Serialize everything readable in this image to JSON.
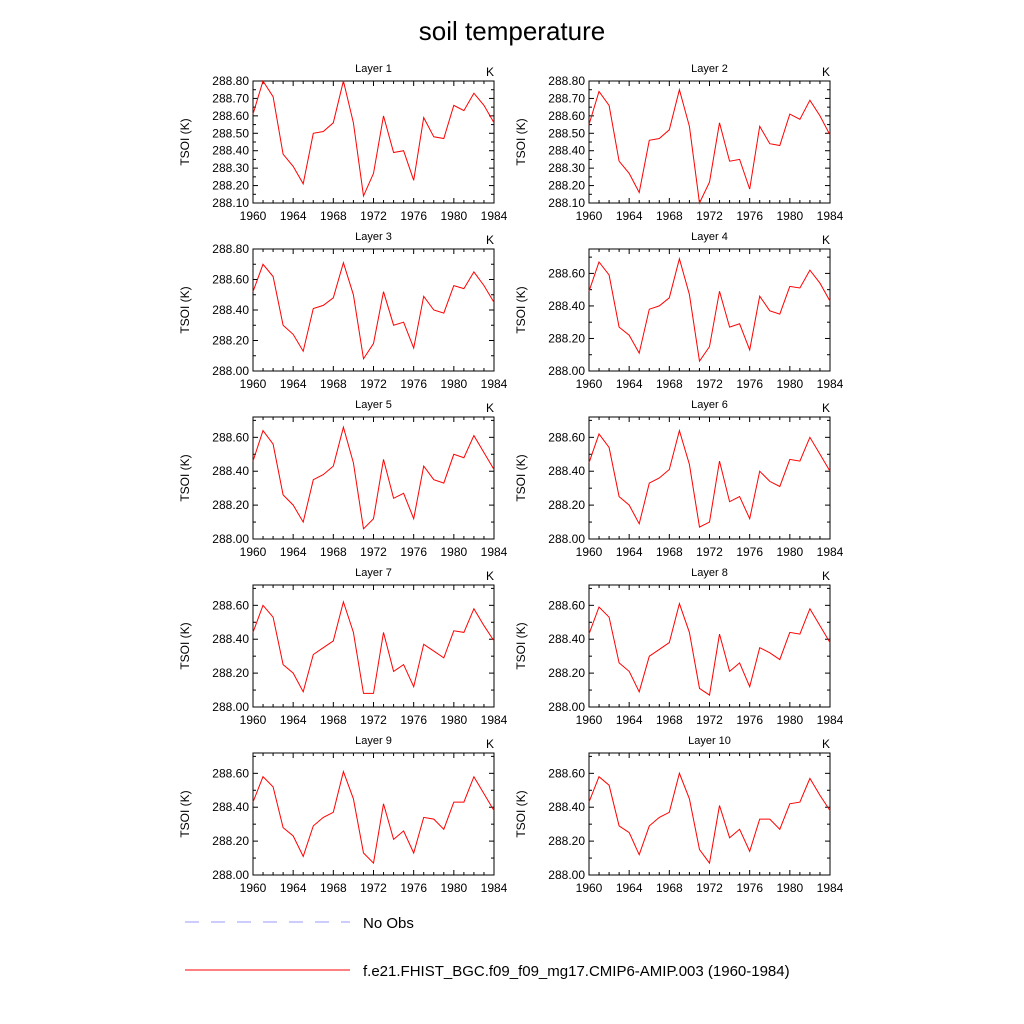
{
  "title": "soil temperature",
  "panel_unit": "K",
  "ylabel": "TSOI  (K)",
  "legend": [
    {
      "label": "No Obs",
      "color": "#9999ff",
      "style": "dashed"
    },
    {
      "label": "f.e21.FHIST_BGC.f09_f09_mg17.CMIP6-AMIP.003 (1960-1984)",
      "color": "#ff0000",
      "style": "solid"
    }
  ],
  "chart_data": [
    {
      "type": "line",
      "title": "Layer 1",
      "ylabel": "TSOI  (K)",
      "unit": "K",
      "xlim": [
        1960,
        1984
      ],
      "ylim": [
        288.1,
        288.8
      ],
      "xticks": [
        1960,
        1964,
        1968,
        1972,
        1976,
        1980,
        1984
      ],
      "yticks": [
        "288.10",
        "288.20",
        "288.30",
        "288.40",
        "288.50",
        "288.60",
        "288.70",
        "288.80"
      ],
      "x": [
        1960,
        1961,
        1962,
        1963,
        1964,
        1965,
        1966,
        1967,
        1968,
        1969,
        1970,
        1971,
        1972,
        1973,
        1974,
        1975,
        1976,
        1977,
        1978,
        1979,
        1980,
        1981,
        1982,
        1983,
        1984
      ],
      "series": [
        {
          "name": "f.e21.FHIST_BGC.f09_f09_mg17.CMIP6-AMIP.003 (1960-1984)",
          "color": "#ff0000",
          "values": [
            288.61,
            288.8,
            288.71,
            288.38,
            288.31,
            288.21,
            288.5,
            288.51,
            288.56,
            288.8,
            288.56,
            288.14,
            288.27,
            288.6,
            288.39,
            288.4,
            288.23,
            288.59,
            288.48,
            288.47,
            288.66,
            288.63,
            288.73,
            288.66,
            288.56
          ]
        }
      ]
    },
    {
      "type": "line",
      "title": "Layer 2",
      "ylabel": "TSOI  (K)",
      "unit": "K",
      "xlim": [
        1960,
        1984
      ],
      "ylim": [
        288.1,
        288.8
      ],
      "xticks": [
        1960,
        1964,
        1968,
        1972,
        1976,
        1980,
        1984
      ],
      "yticks": [
        "288.10",
        "288.20",
        "288.30",
        "288.40",
        "288.50",
        "288.60",
        "288.70",
        "288.80"
      ],
      "x": [
        1960,
        1961,
        1962,
        1963,
        1964,
        1965,
        1966,
        1967,
        1968,
        1969,
        1970,
        1971,
        1972,
        1973,
        1974,
        1975,
        1976,
        1977,
        1978,
        1979,
        1980,
        1981,
        1982,
        1983,
        1984
      ],
      "series": [
        {
          "name": "f.e21.FHIST_BGC.f09_f09_mg17.CMIP6-AMIP.003 (1960-1984)",
          "color": "#ff0000",
          "values": [
            288.55,
            288.74,
            288.66,
            288.34,
            288.27,
            288.16,
            288.46,
            288.47,
            288.52,
            288.75,
            288.54,
            288.1,
            288.22,
            288.56,
            288.34,
            288.35,
            288.18,
            288.54,
            288.44,
            288.43,
            288.61,
            288.58,
            288.69,
            288.6,
            288.49
          ]
        }
      ]
    },
    {
      "type": "line",
      "title": "Layer 3",
      "ylabel": "TSOI  (K)",
      "unit": "K",
      "xlim": [
        1960,
        1984
      ],
      "ylim": [
        288.0,
        288.8
      ],
      "xticks": [
        1960,
        1964,
        1968,
        1972,
        1976,
        1980,
        1984
      ],
      "yticks": [
        "288.00",
        "288.20",
        "288.40",
        "288.60",
        "288.80"
      ],
      "x": [
        1960,
        1961,
        1962,
        1963,
        1964,
        1965,
        1966,
        1967,
        1968,
        1969,
        1970,
        1971,
        1972,
        1973,
        1974,
        1975,
        1976,
        1977,
        1978,
        1979,
        1980,
        1981,
        1982,
        1983,
        1984
      ],
      "series": [
        {
          "name": "f.e21.FHIST_BGC.f09_f09_mg17.CMIP6-AMIP.003 (1960-1984)",
          "color": "#ff0000",
          "values": [
            288.52,
            288.7,
            288.62,
            288.3,
            288.24,
            288.13,
            288.41,
            288.43,
            288.48,
            288.71,
            288.5,
            288.08,
            288.18,
            288.52,
            288.3,
            288.32,
            288.15,
            288.49,
            288.4,
            288.38,
            288.56,
            288.54,
            288.65,
            288.56,
            288.45
          ]
        }
      ]
    },
    {
      "type": "line",
      "title": "Layer 4",
      "ylabel": "TSOI  (K)",
      "unit": "K",
      "xlim": [
        1960,
        1984
      ],
      "ylim": [
        288.0,
        288.75
      ],
      "xticks": [
        1960,
        1964,
        1968,
        1972,
        1976,
        1980,
        1984
      ],
      "yticks": [
        "288.00",
        "288.20",
        "288.40",
        "288.60"
      ],
      "x": [
        1960,
        1961,
        1962,
        1963,
        1964,
        1965,
        1966,
        1967,
        1968,
        1969,
        1970,
        1971,
        1972,
        1973,
        1974,
        1975,
        1976,
        1977,
        1978,
        1979,
        1980,
        1981,
        1982,
        1983,
        1984
      ],
      "series": [
        {
          "name": "f.e21.FHIST_BGC.f09_f09_mg17.CMIP6-AMIP.003 (1960-1984)",
          "color": "#ff0000",
          "values": [
            288.49,
            288.67,
            288.59,
            288.27,
            288.22,
            288.11,
            288.38,
            288.4,
            288.45,
            288.69,
            288.47,
            288.06,
            288.15,
            288.49,
            288.27,
            288.29,
            288.13,
            288.46,
            288.37,
            288.35,
            288.52,
            288.51,
            288.62,
            288.54,
            288.43
          ]
        }
      ]
    },
    {
      "type": "line",
      "title": "Layer 5",
      "ylabel": "TSOI  (K)",
      "unit": "K",
      "xlim": [
        1960,
        1984
      ],
      "ylim": [
        288.0,
        288.72
      ],
      "xticks": [
        1960,
        1964,
        1968,
        1972,
        1976,
        1980,
        1984
      ],
      "yticks": [
        "288.00",
        "288.20",
        "288.40",
        "288.60"
      ],
      "x": [
        1960,
        1961,
        1962,
        1963,
        1964,
        1965,
        1966,
        1967,
        1968,
        1969,
        1970,
        1971,
        1972,
        1973,
        1974,
        1975,
        1976,
        1977,
        1978,
        1979,
        1980,
        1981,
        1982,
        1983,
        1984
      ],
      "series": [
        {
          "name": "f.e21.FHIST_BGC.f09_f09_mg17.CMIP6-AMIP.003 (1960-1984)",
          "color": "#ff0000",
          "values": [
            288.46,
            288.64,
            288.56,
            288.26,
            288.2,
            288.1,
            288.35,
            288.38,
            288.43,
            288.66,
            288.45,
            288.06,
            288.12,
            288.47,
            288.24,
            288.27,
            288.12,
            288.43,
            288.35,
            288.33,
            288.5,
            288.48,
            288.61,
            288.51,
            288.41
          ]
        }
      ]
    },
    {
      "type": "line",
      "title": "Layer 6",
      "ylabel": "TSOI  (K)",
      "unit": "K",
      "xlim": [
        1960,
        1984
      ],
      "ylim": [
        288.0,
        288.72
      ],
      "xticks": [
        1960,
        1964,
        1968,
        1972,
        1976,
        1980,
        1984
      ],
      "yticks": [
        "288.00",
        "288.20",
        "288.40",
        "288.60"
      ],
      "x": [
        1960,
        1961,
        1962,
        1963,
        1964,
        1965,
        1966,
        1967,
        1968,
        1969,
        1970,
        1971,
        1972,
        1973,
        1974,
        1975,
        1976,
        1977,
        1978,
        1979,
        1980,
        1981,
        1982,
        1983,
        1984
      ],
      "series": [
        {
          "name": "f.e21.FHIST_BGC.f09_f09_mg17.CMIP6-AMIP.003 (1960-1984)",
          "color": "#ff0000",
          "values": [
            288.45,
            288.62,
            288.54,
            288.25,
            288.2,
            288.09,
            288.33,
            288.36,
            288.41,
            288.64,
            288.44,
            288.07,
            288.1,
            288.46,
            288.22,
            288.25,
            288.12,
            288.4,
            288.34,
            288.31,
            288.47,
            288.46,
            288.6,
            288.5,
            288.4
          ]
        }
      ]
    },
    {
      "type": "line",
      "title": "Layer 7",
      "ylabel": "TSOI  (K)",
      "unit": "K",
      "xlim": [
        1960,
        1984
      ],
      "ylim": [
        288.0,
        288.72
      ],
      "xticks": [
        1960,
        1964,
        1968,
        1972,
        1976,
        1980,
        1984
      ],
      "yticks": [
        "288.00",
        "288.20",
        "288.40",
        "288.60"
      ],
      "x": [
        1960,
        1961,
        1962,
        1963,
        1964,
        1965,
        1966,
        1967,
        1968,
        1969,
        1970,
        1971,
        1972,
        1973,
        1974,
        1975,
        1976,
        1977,
        1978,
        1979,
        1980,
        1981,
        1982,
        1983,
        1984
      ],
      "series": [
        {
          "name": "f.e21.FHIST_BGC.f09_f09_mg17.CMIP6-AMIP.003 (1960-1984)",
          "color": "#ff0000",
          "values": [
            288.44,
            288.6,
            288.53,
            288.25,
            288.2,
            288.09,
            288.31,
            288.35,
            288.39,
            288.62,
            288.44,
            288.08,
            288.08,
            288.44,
            288.21,
            288.25,
            288.12,
            288.37,
            288.33,
            288.29,
            288.45,
            288.44,
            288.58,
            288.48,
            288.39
          ]
        }
      ]
    },
    {
      "type": "line",
      "title": "Layer 8",
      "ylabel": "TSOI  (K)",
      "unit": "K",
      "xlim": [
        1960,
        1984
      ],
      "ylim": [
        288.0,
        288.72
      ],
      "xticks": [
        1960,
        1964,
        1968,
        1972,
        1976,
        1980,
        1984
      ],
      "yticks": [
        "288.00",
        "288.20",
        "288.40",
        "288.60"
      ],
      "x": [
        1960,
        1961,
        1962,
        1963,
        1964,
        1965,
        1966,
        1967,
        1968,
        1969,
        1970,
        1971,
        1972,
        1973,
        1974,
        1975,
        1976,
        1977,
        1978,
        1979,
        1980,
        1981,
        1982,
        1983,
        1984
      ],
      "series": [
        {
          "name": "f.e21.FHIST_BGC.f09_f09_mg17.CMIP6-AMIP.003 (1960-1984)",
          "color": "#ff0000",
          "values": [
            288.43,
            288.59,
            288.53,
            288.26,
            288.21,
            288.09,
            288.3,
            288.34,
            288.38,
            288.61,
            288.44,
            288.11,
            288.07,
            288.43,
            288.21,
            288.26,
            288.12,
            288.35,
            288.32,
            288.28,
            288.44,
            288.43,
            288.58,
            288.48,
            288.38
          ]
        }
      ]
    },
    {
      "type": "line",
      "title": "Layer 9",
      "ylabel": "TSOI  (K)",
      "unit": "K",
      "xlim": [
        1960,
        1984
      ],
      "ylim": [
        288.0,
        288.72
      ],
      "xticks": [
        1960,
        1964,
        1968,
        1972,
        1976,
        1980,
        1984
      ],
      "yticks": [
        "288.00",
        "288.20",
        "288.40",
        "288.60"
      ],
      "x": [
        1960,
        1961,
        1962,
        1963,
        1964,
        1965,
        1966,
        1967,
        1968,
        1969,
        1970,
        1971,
        1972,
        1973,
        1974,
        1975,
        1976,
        1977,
        1978,
        1979,
        1980,
        1981,
        1982,
        1983,
        1984
      ],
      "series": [
        {
          "name": "f.e21.FHIST_BGC.f09_f09_mg17.CMIP6-AMIP.003 (1960-1984)",
          "color": "#ff0000",
          "values": [
            288.43,
            288.58,
            288.52,
            288.28,
            288.23,
            288.11,
            288.29,
            288.34,
            288.37,
            288.61,
            288.45,
            288.13,
            288.07,
            288.42,
            288.21,
            288.26,
            288.13,
            288.34,
            288.33,
            288.27,
            288.43,
            288.43,
            288.58,
            288.48,
            288.38
          ]
        }
      ]
    },
    {
      "type": "line",
      "title": "Layer 10",
      "ylabel": "TSOI  (K)",
      "unit": "K",
      "xlim": [
        1960,
        1984
      ],
      "ylim": [
        288.0,
        288.72
      ],
      "xticks": [
        1960,
        1964,
        1968,
        1972,
        1976,
        1980,
        1984
      ],
      "yticks": [
        "288.00",
        "288.20",
        "288.40",
        "288.60"
      ],
      "x": [
        1960,
        1961,
        1962,
        1963,
        1964,
        1965,
        1966,
        1967,
        1968,
        1969,
        1970,
        1971,
        1972,
        1973,
        1974,
        1975,
        1976,
        1977,
        1978,
        1979,
        1980,
        1981,
        1982,
        1983,
        1984
      ],
      "series": [
        {
          "name": "f.e21.FHIST_BGC.f09_f09_mg17.CMIP6-AMIP.003 (1960-1984)",
          "color": "#ff0000",
          "values": [
            288.43,
            288.58,
            288.53,
            288.29,
            288.25,
            288.12,
            288.29,
            288.34,
            288.37,
            288.6,
            288.45,
            288.15,
            288.07,
            288.41,
            288.22,
            288.27,
            288.14,
            288.33,
            288.33,
            288.27,
            288.42,
            288.43,
            288.57,
            288.47,
            288.38
          ]
        }
      ]
    }
  ]
}
